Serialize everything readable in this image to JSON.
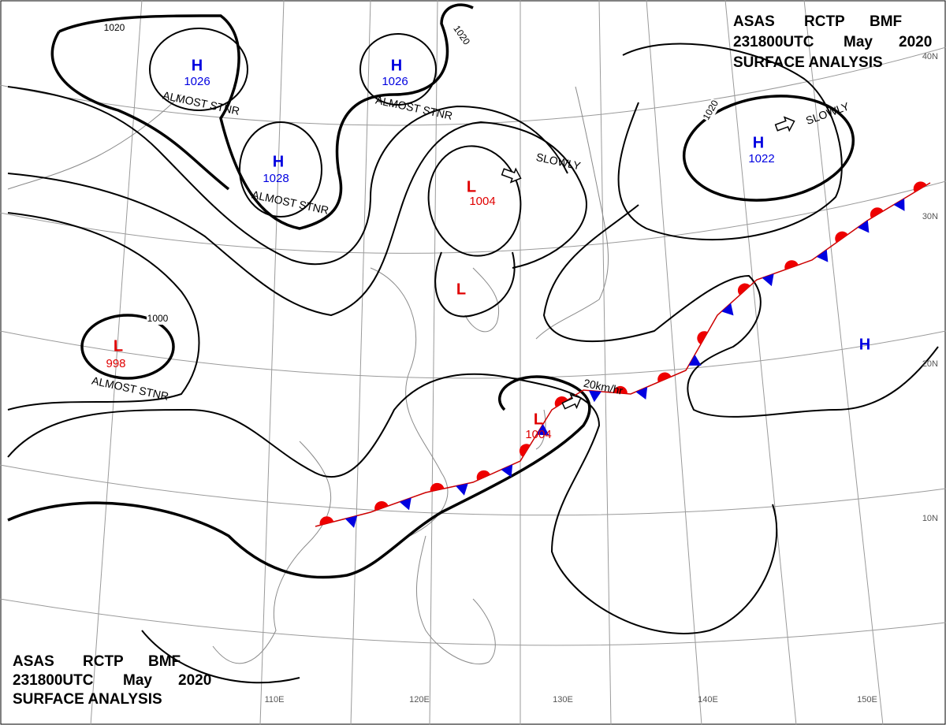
{
  "header": {
    "agency": "ASAS",
    "center": "RCTP",
    "office": "BMF",
    "time": "231800UTC",
    "month": "May",
    "year": "2020",
    "title": "SURFACE ANALYSIS"
  },
  "pressure_centers": [
    {
      "symbol": "H",
      "value": 1026,
      "note": "ALMOST STNR"
    },
    {
      "symbol": "H",
      "value": 1026,
      "note": "ALMOST STNR"
    },
    {
      "symbol": "H",
      "value": 1028,
      "note": "ALMOST STNR"
    },
    {
      "symbol": "L",
      "value": 1004,
      "note": "SLOWLY"
    },
    {
      "symbol": "L"
    },
    {
      "symbol": "L",
      "value": 998,
      "note": "ALMOST STNR"
    },
    {
      "symbol": "L",
      "value": 1004,
      "note": "20km/hr"
    },
    {
      "symbol": "H",
      "value": 1022,
      "note": "SLOWLY"
    },
    {
      "symbol": "H"
    }
  ],
  "isobar_labels": [
    1020,
    1020,
    1020,
    1000
  ],
  "longitude_labels": [
    "110E",
    "120E",
    "130E",
    "140E",
    "150E"
  ],
  "latitude_labels": [
    "40N",
    "30N",
    "20N",
    "10N"
  ]
}
